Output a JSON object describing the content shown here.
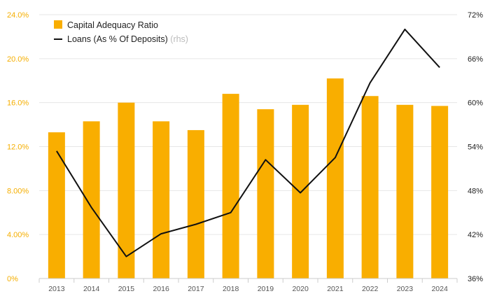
{
  "chart_data": {
    "type": "bar",
    "categories": [
      "2013",
      "2014",
      "2015",
      "2016",
      "2017",
      "2018",
      "2019",
      "2020",
      "2021",
      "2022",
      "2023",
      "2024"
    ],
    "series": [
      {
        "name": "Capital Adequacy Ratio",
        "type": "bar",
        "axis": "left",
        "color": "#f9ae00",
        "values": [
          13.3,
          14.3,
          16.0,
          14.3,
          13.5,
          16.8,
          15.4,
          15.8,
          18.2,
          16.6,
          15.8,
          15.7
        ]
      },
      {
        "name": "Loans (As % Of Deposits)",
        "suffix": "(rhs)",
        "type": "line",
        "axis": "right",
        "color": "#111111",
        "values": [
          53.4,
          45.7,
          39.0,
          42.1,
          43.4,
          45.0,
          52.2,
          47.7,
          52.5,
          62.7,
          70.0,
          64.8
        ]
      }
    ],
    "y_left": {
      "ylim": [
        0,
        24
      ],
      "ticks": [
        0,
        4,
        8,
        12,
        16,
        20,
        24
      ],
      "tick_labels": [
        "0%",
        "4.00%",
        "8.00%",
        "12.0%",
        "16.0%",
        "20.0%",
        "24.0%"
      ]
    },
    "y_right": {
      "ylim": [
        36,
        72
      ],
      "ticks": [
        36,
        42,
        48,
        54,
        60,
        66,
        72
      ],
      "tick_labels": [
        "36%",
        "42%",
        "48%",
        "54%",
        "60%",
        "66%",
        "72%"
      ]
    },
    "grid": true,
    "legend": "top-left",
    "title": "",
    "xlabel": "",
    "ylabel": ""
  }
}
